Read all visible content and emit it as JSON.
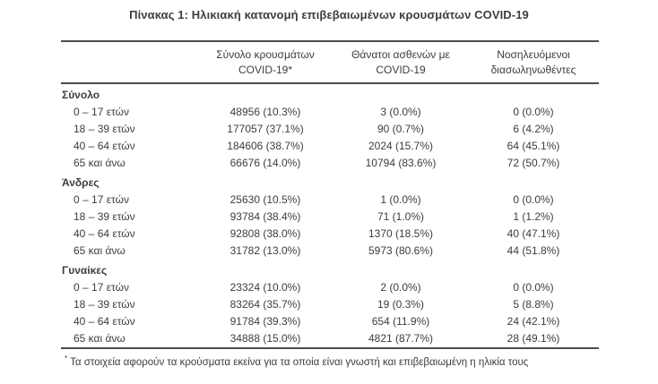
{
  "title": "Πίνακας 1: Ηλικιακή κατανομή επιβεβαιωμένων κρουσμάτων COVID-19",
  "colors": {
    "text": "#3d3d3d",
    "border": "#4d4d4d",
    "background": "#ffffff"
  },
  "table": {
    "columns": {
      "cases_line1": "Σύνολο κρουσμάτων",
      "cases_line2": "COVID-19*",
      "deaths_line1": "Θάνατοι ασθενών με",
      "deaths_line2": "COVID-19",
      "intubated_line1": "Νοσηλευόμενοι",
      "intubated_line2": "διασωληνωθέντες"
    },
    "sections": [
      {
        "label": "Σύνολο",
        "rows": [
          {
            "age": "0 – 17 ετών",
            "cases": "48956 (10.3%)",
            "deaths": "3 (0.0%)",
            "intubated": "0 (0.0%)"
          },
          {
            "age": "18 – 39 ετών",
            "cases": "177057 (37.1%)",
            "deaths": "90 (0.7%)",
            "intubated": "6 (4.2%)"
          },
          {
            "age": "40 – 64 ετών",
            "cases": "184606 (38.7%)",
            "deaths": "2024 (15.7%)",
            "intubated": "64 (45.1%)"
          },
          {
            "age": "65 και άνω",
            "cases": "66676 (14.0%)",
            "deaths": "10794 (83.6%)",
            "intubated": "72 (50.7%)"
          }
        ]
      },
      {
        "label": "Άνδρες",
        "rows": [
          {
            "age": "0 – 17 ετών",
            "cases": "25630 (10.5%)",
            "deaths": "1 (0.0%)",
            "intubated": "0 (0.0%)"
          },
          {
            "age": "18 – 39 ετών",
            "cases": "93784 (38.4%)",
            "deaths": "71 (1.0%)",
            "intubated": "1 (1.2%)"
          },
          {
            "age": "40 – 64 ετών",
            "cases": "92808 (38.0%)",
            "deaths": "1370 (18.5%)",
            "intubated": "40 (47.1%)"
          },
          {
            "age": "65 και άνω",
            "cases": "31782 (13.0%)",
            "deaths": "5973 (80.6%)",
            "intubated": "44 (51.8%)"
          }
        ]
      },
      {
        "label": "Γυναίκες",
        "rows": [
          {
            "age": "0 – 17 ετών",
            "cases": "23324 (10.0%)",
            "deaths": "2 (0.0%)",
            "intubated": "0 (0.0%)"
          },
          {
            "age": "18 – 39 ετών",
            "cases": "83264 (35.7%)",
            "deaths": "19 (0.3%)",
            "intubated": "5 (8.8%)"
          },
          {
            "age": "40 – 64 ετών",
            "cases": "91784 (39.3%)",
            "deaths": "654 (11.9%)",
            "intubated": "24 (42.1%)"
          },
          {
            "age": "65 και άνω",
            "cases": "34888 (15.0%)",
            "deaths": "4821 (87.7%)",
            "intubated": "28 (49.1%)"
          }
        ]
      }
    ],
    "footnote_marker": "*",
    "footnote": "Τα στοιχεία αφορούν τα κρούσματα εκείνα για τα οποία είναι γνωστή και επιβεβαιωμένη η ηλικία τους"
  }
}
